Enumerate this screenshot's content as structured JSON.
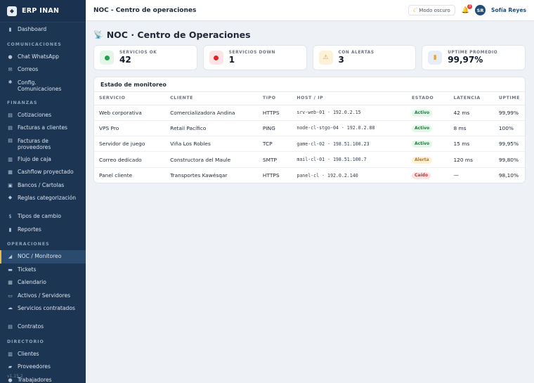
{
  "app": {
    "name": "ERP INAN",
    "logo_glyph": "◆",
    "version": "v1.15.2"
  },
  "sidebar": {
    "top": [
      {
        "icon": "chart-icon",
        "glyph": "▮",
        "label": "Dashboard"
      }
    ],
    "sections": [
      {
        "title": "COMUNICACIONES",
        "items": [
          {
            "icon": "whatsapp-icon",
            "glyph": "●",
            "label": "Chat WhatsApp"
          },
          {
            "icon": "mail-icon",
            "glyph": "✉",
            "label": "Correos"
          },
          {
            "icon": "gear-icon",
            "glyph": "✱",
            "label": "Config. Comunicaciones"
          }
        ]
      },
      {
        "title": "FINANZAS",
        "items": [
          {
            "icon": "document-icon",
            "glyph": "▤",
            "label": "Cotizaciones"
          },
          {
            "icon": "invoice-icon",
            "glyph": "▤",
            "label": "Facturas a clientes"
          },
          {
            "icon": "invoice-icon",
            "glyph": "▤",
            "label": "Facturas de proveedores"
          },
          {
            "icon": "cashflow-icon",
            "glyph": "▥",
            "label": "Flujo de caja"
          },
          {
            "icon": "trend-icon",
            "glyph": "▦",
            "label": "Cashflow proyectado"
          },
          {
            "icon": "bank-icon",
            "glyph": "▣",
            "label": "Bancos / Cartolas"
          },
          {
            "icon": "tag-icon",
            "glyph": "◆",
            "label": "Reglas categorización"
          },
          {
            "icon": "money-icon",
            "glyph": "$",
            "label": "Tipos de cambio"
          },
          {
            "icon": "report-icon",
            "glyph": "▮",
            "label": "Reportes"
          }
        ]
      },
      {
        "title": "OPERACIONES",
        "items": [
          {
            "icon": "satellite-icon",
            "glyph": "◢",
            "label": "NOC / Monitoreo",
            "active": true
          },
          {
            "icon": "ticket-icon",
            "glyph": "▬",
            "label": "Tickets"
          },
          {
            "icon": "calendar-icon",
            "glyph": "▦",
            "label": "Calendario"
          },
          {
            "icon": "server-icon",
            "glyph": "▭",
            "label": "Activos / Servidores"
          },
          {
            "icon": "cloud-icon",
            "glyph": "☁",
            "label": "Servicios contratados"
          },
          {
            "icon": "contract-icon",
            "glyph": "▤",
            "label": "Contratos"
          }
        ]
      },
      {
        "title": "DIRECTORIO",
        "items": [
          {
            "icon": "building-icon",
            "glyph": "▥",
            "label": "Clientes"
          },
          {
            "icon": "truck-icon",
            "glyph": "▰",
            "label": "Proveedores"
          },
          {
            "icon": "users-icon",
            "glyph": "●",
            "label": "Trabajadores"
          }
        ]
      }
    ]
  },
  "topbar": {
    "title": "NOC - Centro de operaciones",
    "dark_mode_icon": "moon-icon",
    "dark_mode_glyph": "☾",
    "dark_mode_label": "Modo oscuro",
    "notification_count": "3",
    "avatar_initials": "SR",
    "user_name": "Sofía Reyes"
  },
  "page": {
    "title": "NOC · Centro de Operaciones",
    "title_icon": "satellite-icon"
  },
  "stats": [
    {
      "label": "SERVICIOS OK",
      "value": "42",
      "icon": "ok-dot-icon",
      "bg": "#e3f6e8",
      "color": "#22a34a"
    },
    {
      "label": "SERVICIOS DOWN",
      "value": "1",
      "icon": "down-dot-icon",
      "bg": "#fde4e4",
      "color": "#dc2626"
    },
    {
      "label": "CON ALERTAS",
      "value": "3",
      "icon": "warning-icon",
      "bg": "#fdf1d7",
      "color": "#d69e2e",
      "glyph": "⚠"
    },
    {
      "label": "UPTIME PROMEDIO",
      "value": "99,97%",
      "icon": "signal-icon",
      "bg": "#e8eef8",
      "color": "#e9a23b",
      "glyph": "▮"
    }
  ],
  "monitor": {
    "title": "Estado de monitoreo",
    "columns": [
      "SERVICIO",
      "CLIENTE",
      "TIPO",
      "HOST / IP",
      "ESTADO",
      "LATENCIA",
      "UPTIME"
    ],
    "rows": [
      {
        "service": "Web corporativa",
        "client": "Comercializadora Andina",
        "type": "HTTPS",
        "host": "srv-web-01 · 192.0.2.15",
        "status": "Activo",
        "status_kind": "active",
        "latency": "42 ms",
        "uptime": "99,99%"
      },
      {
        "service": "VPS Pro",
        "client": "Retail Pacífico",
        "type": "PING",
        "host": "node-cl-stgo-04 · 192.0.2.88",
        "status": "Activo",
        "status_kind": "active",
        "latency": "8 ms",
        "uptime": "100%"
      },
      {
        "service": "Servidor de juego",
        "client": "Viña Los Robles",
        "type": "TCP",
        "host": "game-cl-02 · 198.51.100.23",
        "status": "Activo",
        "status_kind": "active",
        "latency": "15 ms",
        "uptime": "99,95%"
      },
      {
        "service": "Correo dedicado",
        "client": "Constructora del Maule",
        "type": "SMTP",
        "host": "mail-cl-01 · 198.51.100.7",
        "status": "Alerta",
        "status_kind": "alert",
        "latency": "120 ms",
        "uptime": "99,80%"
      },
      {
        "service": "Panel cliente",
        "client": "Transportes Kawésqar",
        "type": "HTTPS",
        "host": "panel-cl · 192.0.2.140",
        "status": "Caído",
        "status_kind": "down",
        "latency": "—",
        "uptime": "98,10%"
      }
    ]
  }
}
